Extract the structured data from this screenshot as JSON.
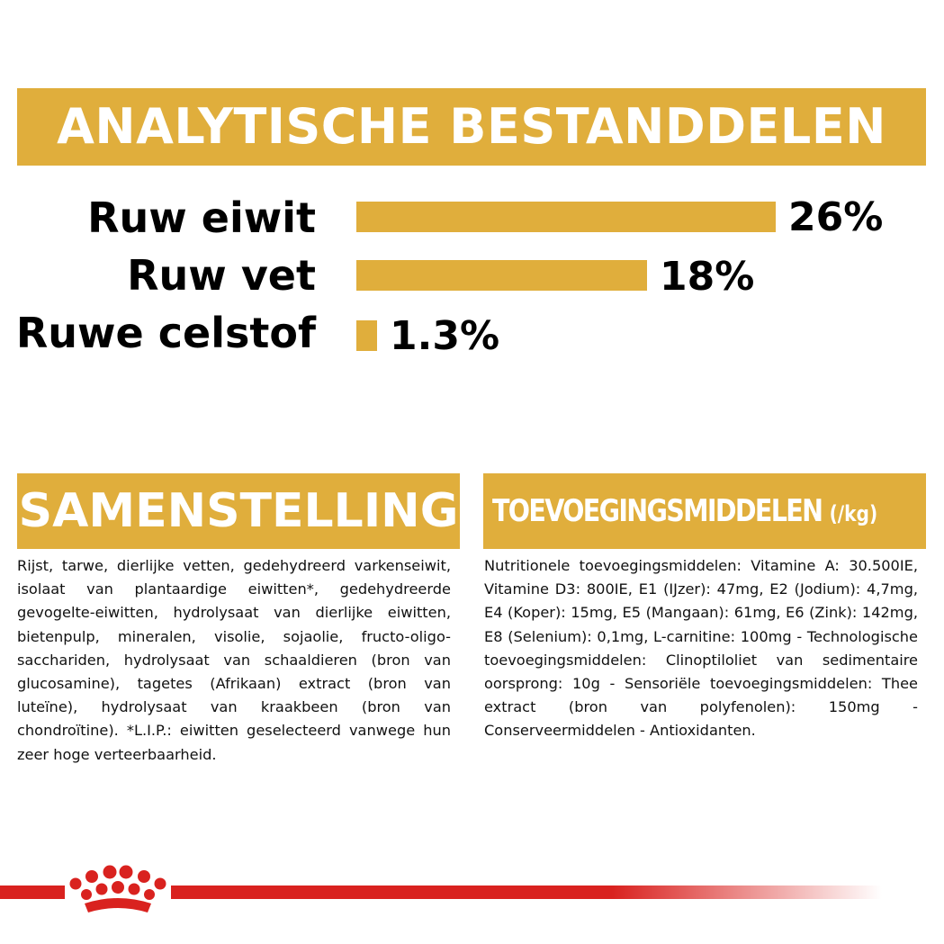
{
  "analysis": {
    "title": "ANALYTISCHE BESTANDDELEN",
    "rows": [
      {
        "label": "Ruw eiwit",
        "value": "26%",
        "percent": 26
      },
      {
        "label": "Ruw vet",
        "value": "18%",
        "percent": 18
      },
      {
        "label": "Ruwe celstof",
        "value": "1.3%",
        "percent": 1.3
      }
    ]
  },
  "composition": {
    "title": "SAMENSTELLING",
    "text": "Rijst, tarwe, dierlijke vetten, gedehydreerd varkenseiwit, isolaat van plantaardige eiwitten*, gedehydreerde gevogelte-eiwitten, hydrolysaat van dierlijke eiwitten, bietenpulp, mineralen, visolie, sojaolie, fructo-oligo-sacchariden, hydrolysaat van schaaldieren (bron van glucosamine), tagetes (Afrikaan) extract (bron van luteïne), hydrolysaat van kraakbeen (bron van chondroïtine). *L.I.P.: eiwitten geselecteerd vanwege hun zeer hoge verteerbaarheid."
  },
  "additives": {
    "title": "TOEVOEGINGSMIDDELEN",
    "unit": "(/kg)",
    "text": "Nutritionele toevoegingsmiddelen: Vitamine A: 30.500IE, Vitamine D3: 800IE, E1 (IJzer): 47mg, E2 (Jodium): 4,7mg, E4 (Koper): 15mg, E5 (Mangaan): 61mg, E6 (Zink): 142mg, E8 (Selenium): 0,1mg, L-carnitine: 100mg - Technologische toevoegingsmiddelen: Clinoptiloliet van sedimentaire oorsprong: 10g - Sensoriële toevoegingsmiddelen: Thee extract (bron van polyfenolen): 150mg - Conserveermiddelen - Antioxidanten."
  },
  "colors": {
    "accent": "#e0ae3c",
    "brand_red": "#d9221f"
  },
  "footer": {
    "logo_icon": "crown-icon"
  }
}
